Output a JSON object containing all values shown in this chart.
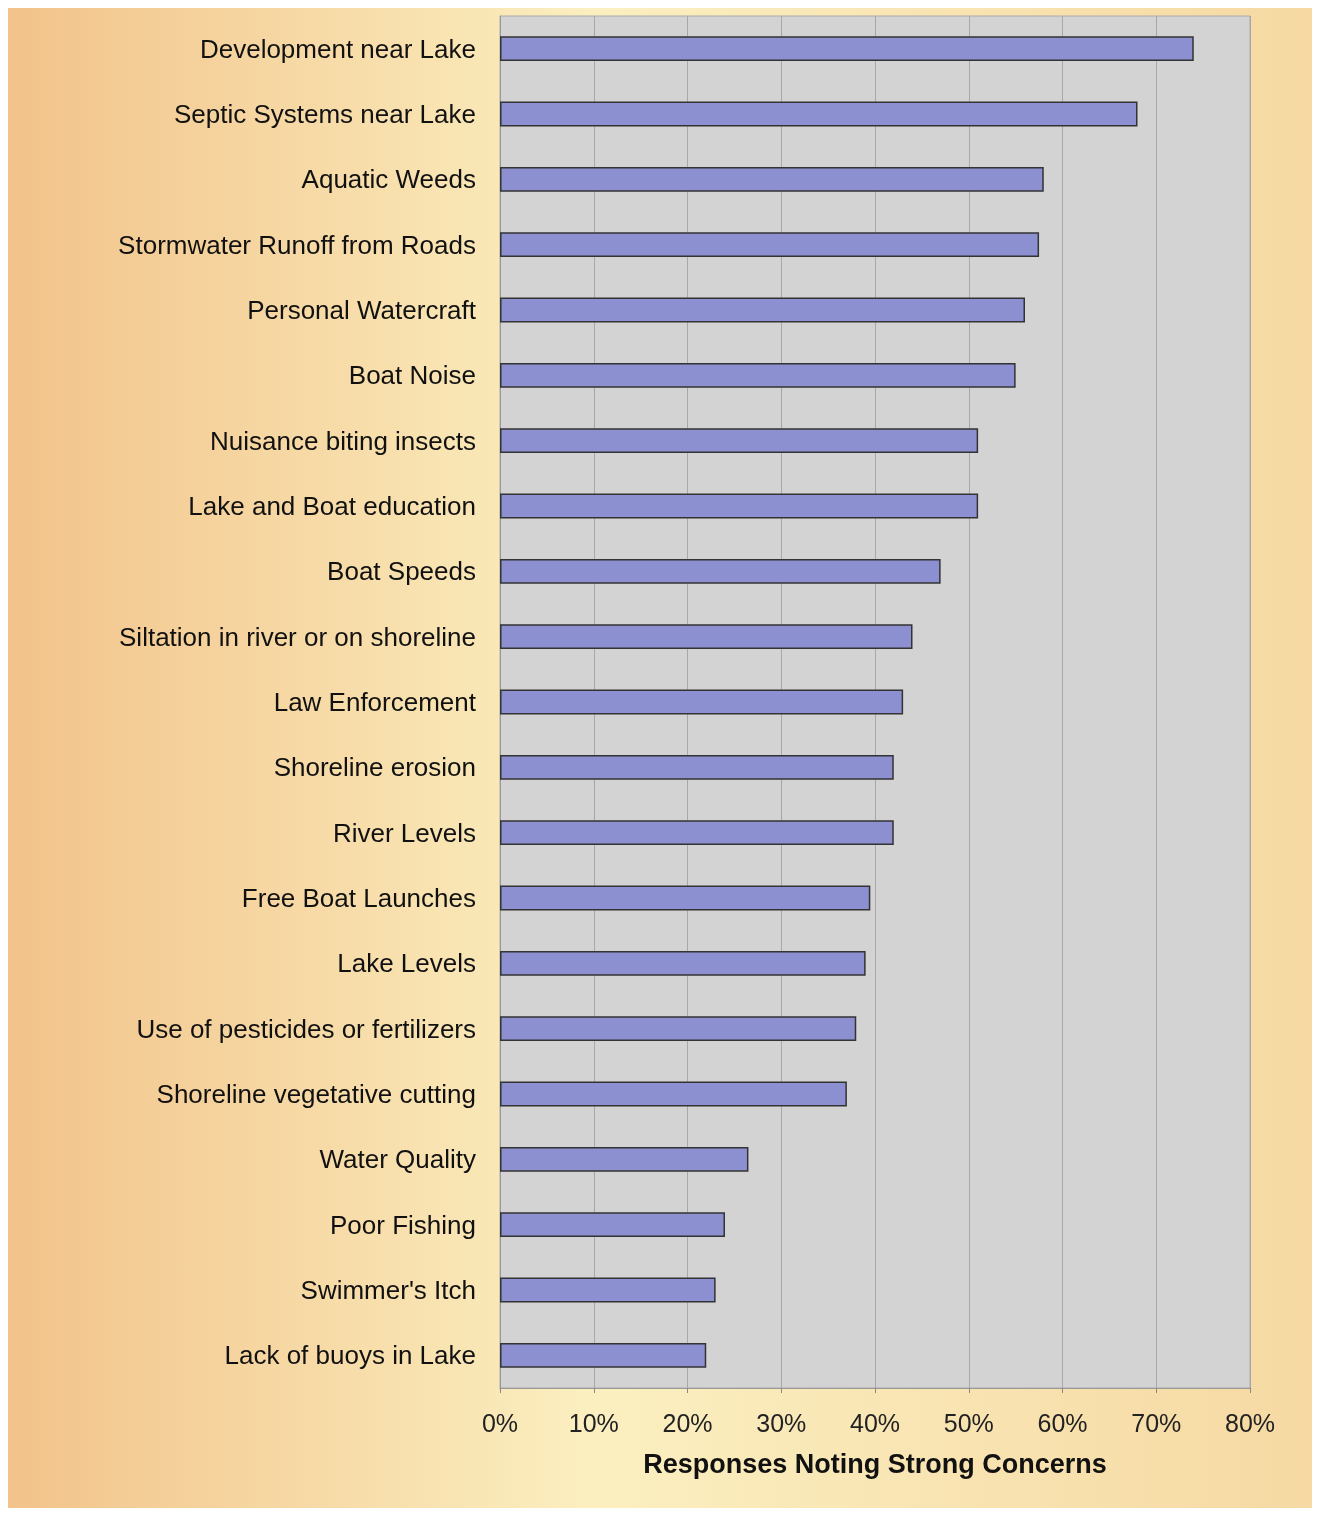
{
  "chart_data": {
    "type": "bar",
    "orientation": "horizontal",
    "xlabel": "Responses Noting Strong Concerns",
    "categories": [
      "Development near Lake",
      "Septic Systems near Lake",
      "Aquatic Weeds",
      "Stormwater Runoff from Roads",
      "Personal Watercraft",
      "Boat Noise",
      "Nuisance biting insects",
      "Lake and Boat education",
      "Boat Speeds",
      "Siltation in river or on shoreline",
      "Law Enforcement",
      "Shoreline erosion",
      "River Levels",
      "Free Boat Launches",
      "Lake Levels",
      "Use of pesticides or fertilizers",
      "Shoreline vegetative cutting",
      "Water Quality",
      "Poor Fishing",
      "Swimmer's Itch",
      "Lack of buoys in Lake"
    ],
    "values": [
      74,
      68,
      58,
      57.5,
      56,
      55,
      51,
      51,
      47,
      44,
      43,
      42,
      42,
      39.5,
      39,
      38,
      37,
      26.5,
      24,
      23,
      22
    ],
    "color": "#8c8fd0",
    "xlim": [
      0,
      80
    ],
    "xticks": [
      {
        "value": 0,
        "label": "0%"
      },
      {
        "value": 10,
        "label": "10%"
      },
      {
        "value": 20,
        "label": "20%"
      },
      {
        "value": 30,
        "label": "30%"
      },
      {
        "value": 40,
        "label": "40%"
      },
      {
        "value": 50,
        "label": "50%"
      },
      {
        "value": 60,
        "label": "60%"
      },
      {
        "value": 70,
        "label": "70%"
      },
      {
        "value": 80,
        "label": "80%"
      }
    ],
    "grid": "x"
  }
}
